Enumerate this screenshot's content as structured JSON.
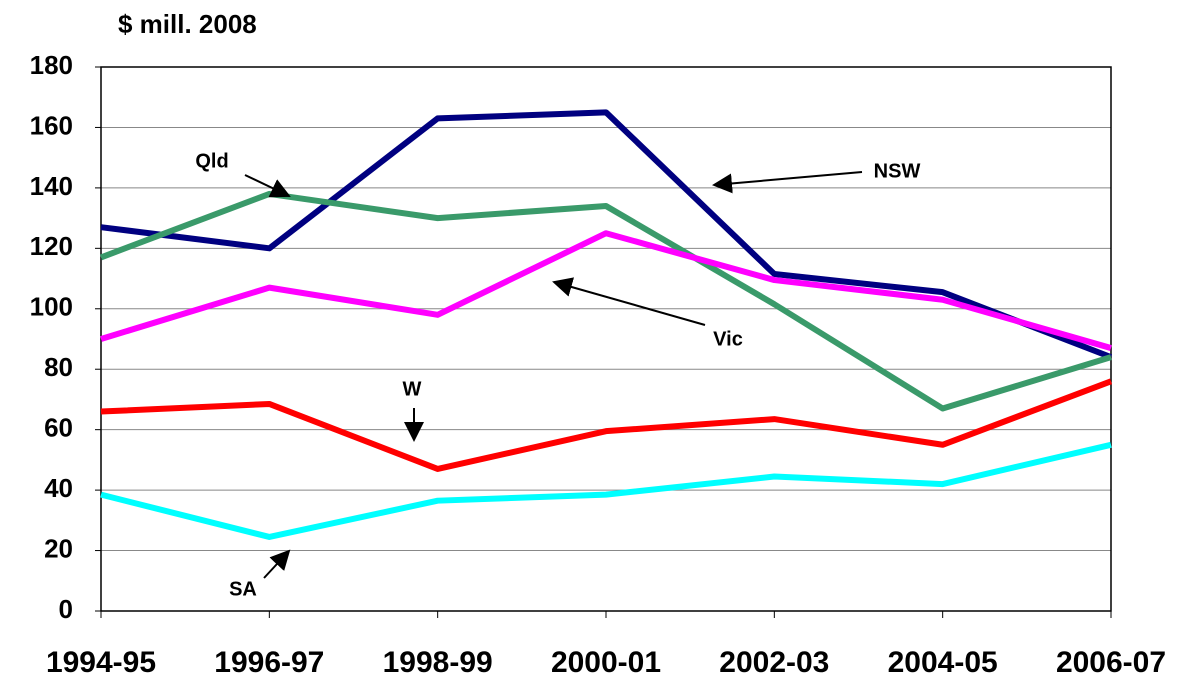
{
  "chart_data": {
    "type": "line",
    "y_label": "$ mill. 2008",
    "categories": [
      "1994-95",
      "1996-97",
      "1998-99",
      "2000-01",
      "2002-03",
      "2004-05",
      "2006-07"
    ],
    "series": [
      {
        "name": "NSW",
        "color": "#000080",
        "values": [
          127,
          120,
          163,
          165,
          111.5,
          105.5,
          84
        ]
      },
      {
        "name": "Qld",
        "color": "#3a9a6a",
        "values": [
          117,
          138,
          130,
          134,
          101.5,
          67,
          84
        ]
      },
      {
        "name": "Vic",
        "color": "#ff00ff",
        "values": [
          90,
          107,
          98,
          125,
          109.5,
          103,
          87
        ]
      },
      {
        "name": "W",
        "color": "#ff0000",
        "values": [
          66,
          68.5,
          47,
          59.5,
          63.5,
          55,
          76
        ]
      },
      {
        "name": "SA",
        "color": "#00ffff",
        "values": [
          38.5,
          24.5,
          36.5,
          38.5,
          44.5,
          42,
          55
        ]
      }
    ],
    "ylim": [
      0,
      180
    ],
    "yticks": [
      0,
      20,
      40,
      60,
      80,
      100,
      120,
      140,
      160,
      180
    ],
    "grid": true
  }
}
